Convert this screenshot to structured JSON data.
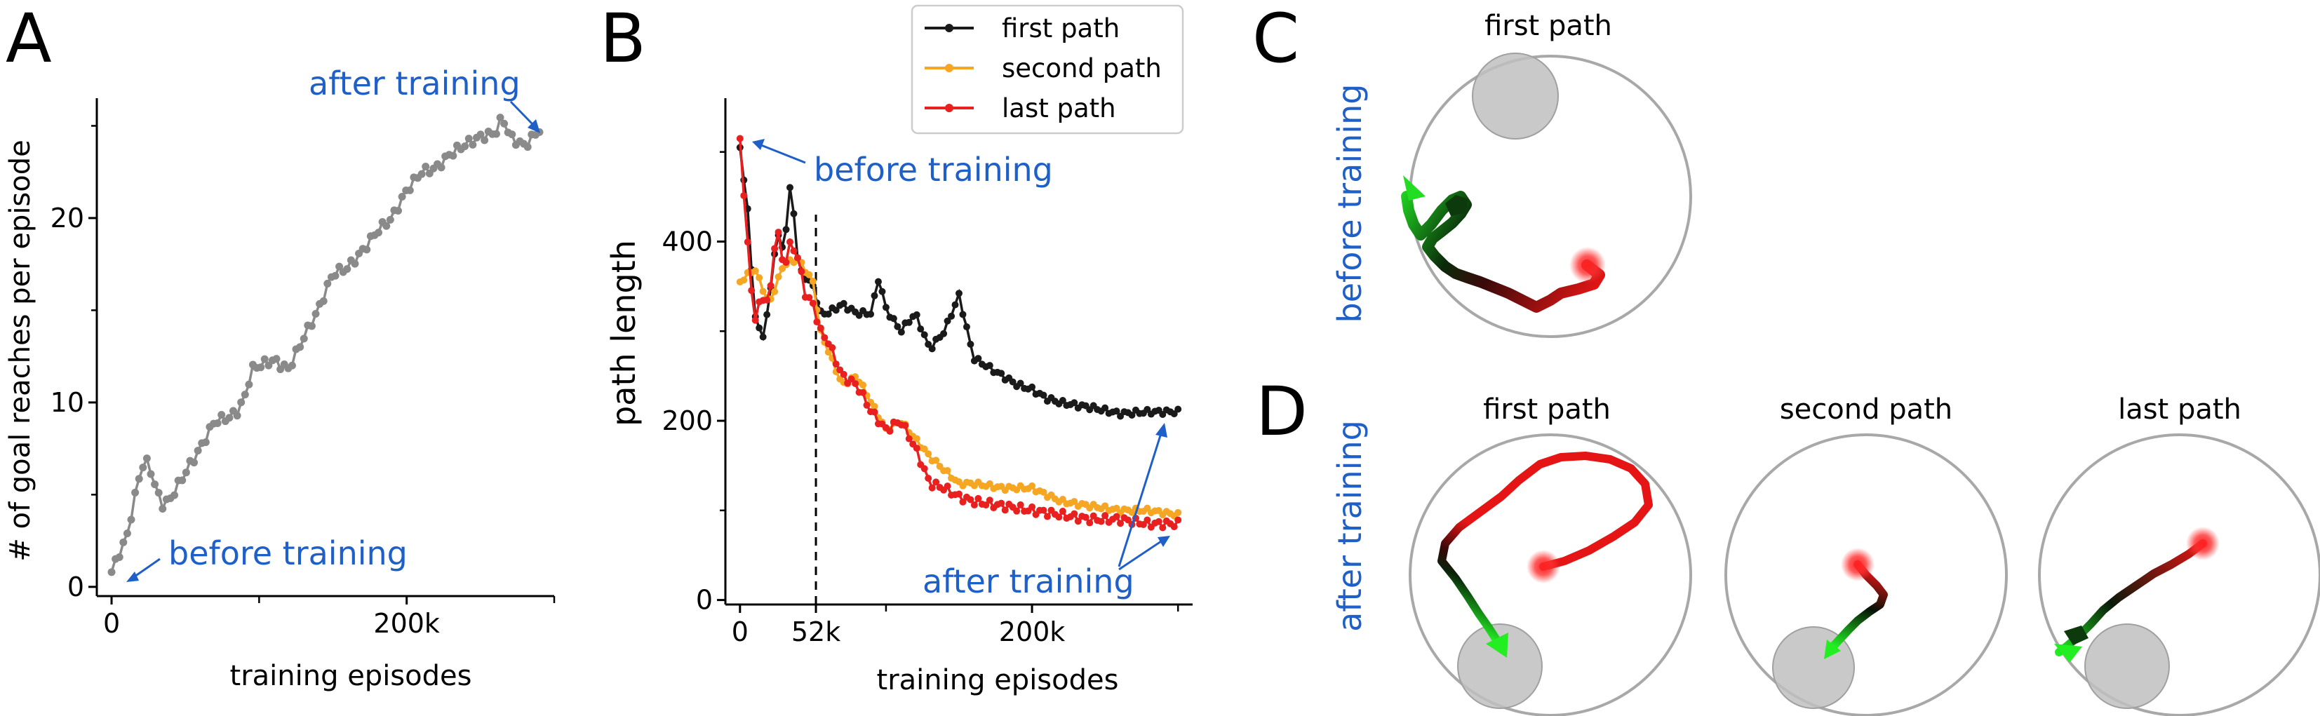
{
  "panels": {
    "A": "A",
    "B": "B",
    "C": "C",
    "D": "D"
  },
  "chart_data": [
    {
      "type": "line",
      "panel": "A",
      "xlabel": "training episodes",
      "ylabel": "# of goal reaches per episode",
      "xlim": [
        -10000,
        300000
      ],
      "ylim": [
        -0.5,
        26.5
      ],
      "xticks": [
        {
          "v": 0,
          "label": "0"
        },
        {
          "v": 200000,
          "label": "200k"
        }
      ],
      "xminor": [
        100000,
        300000
      ],
      "yticks": [
        {
          "v": 0,
          "label": "0"
        },
        {
          "v": 10,
          "label": "10"
        },
        {
          "v": 20,
          "label": "20"
        }
      ],
      "series": [
        {
          "name": "goal reaches",
          "color": "#8a8a8a",
          "anchors_x": [
            0,
            5000,
            10000,
            15000,
            20000,
            25000,
            30000,
            35000,
            40000,
            45000,
            50000,
            60000,
            70000,
            80000,
            85000,
            90000,
            95000,
            100000,
            110000,
            115000,
            120000,
            130000,
            140000,
            150000,
            160000,
            170000,
            180000,
            190000,
            200000,
            210000,
            220000,
            230000,
            240000,
            250000,
            260000,
            265000,
            270000,
            280000,
            290000
          ],
          "anchors_y": [
            0.8,
            1.8,
            2.6,
            4.5,
            6.5,
            6.8,
            5.3,
            4.4,
            4.8,
            5.5,
            6.2,
            7.5,
            9.0,
            9.2,
            9.5,
            10.2,
            11.8,
            12.0,
            12.3,
            12.0,
            11.8,
            13.5,
            15.0,
            17.0,
            17.3,
            18.2,
            19.3,
            20.0,
            21.5,
            22.5,
            22.7,
            23.5,
            24.0,
            24.4,
            24.6,
            25.5,
            24.4,
            23.9,
            24.8
          ]
        }
      ],
      "annotations": [
        {
          "text": "before training"
        },
        {
          "text": "after training"
        }
      ]
    },
    {
      "type": "line",
      "panel": "B",
      "xlabel": "training episodes",
      "ylabel": "path length",
      "xlim": [
        -10000,
        310000
      ],
      "ylim": [
        -5,
        560
      ],
      "xticks": [
        {
          "v": 0,
          "label": "0"
        },
        {
          "v": 52000,
          "label": "52k"
        },
        {
          "v": 200000,
          "label": "200k"
        }
      ],
      "xminor": [
        100000,
        300000
      ],
      "yticks": [
        {
          "v": 0,
          "label": "0"
        },
        {
          "v": 200,
          "label": "200"
        },
        {
          "v": 400,
          "label": "400"
        }
      ],
      "yminor": [
        100,
        300,
        500
      ],
      "vline": 52000,
      "legend": "top-right",
      "series": [
        {
          "name": "first path",
          "color": "#1a1a1a",
          "anchors_x": [
            0,
            5000,
            10000,
            15000,
            20000,
            25000,
            30000,
            35000,
            40000,
            45000,
            50000,
            55000,
            60000,
            70000,
            80000,
            90000,
            95000,
            100000,
            110000,
            120000,
            130000,
            140000,
            150000,
            160000,
            170000,
            180000,
            190000,
            200000,
            210000,
            220000,
            240000,
            260000,
            280000,
            300000
          ],
          "anchors_y": [
            505,
            440,
            320,
            290,
            330,
            410,
            390,
            470,
            370,
            360,
            350,
            320,
            320,
            330,
            320,
            320,
            360,
            325,
            300,
            320,
            280,
            300,
            340,
            270,
            260,
            250,
            240,
            235,
            225,
            220,
            215,
            208,
            210,
            210
          ]
        },
        {
          "name": "second path",
          "color": "#f5a623",
          "anchors_x": [
            0,
            10000,
            20000,
            30000,
            40000,
            50000,
            55000,
            60000,
            70000,
            80000,
            90000,
            100000,
            110000,
            120000,
            130000,
            140000,
            150000,
            160000,
            180000,
            200000,
            220000,
            240000,
            260000,
            280000,
            300000
          ],
          "anchors_y": [
            355,
            370,
            330,
            375,
            380,
            355,
            300,
            280,
            240,
            250,
            220,
            190,
            200,
            180,
            160,
            145,
            130,
            130,
            125,
            125,
            110,
            105,
            100,
            100,
            95
          ]
        },
        {
          "name": "last path",
          "color": "#e82020",
          "anchors_x": [
            0,
            5000,
            10000,
            15000,
            20000,
            25000,
            30000,
            35000,
            40000,
            45000,
            50000,
            55000,
            60000,
            70000,
            80000,
            90000,
            100000,
            110000,
            120000,
            130000,
            140000,
            150000,
            160000,
            180000,
            200000,
            220000,
            240000,
            260000,
            280000,
            300000
          ],
          "anchors_y": [
            515,
            400,
            310,
            340,
            330,
            420,
            370,
            400,
            380,
            340,
            330,
            300,
            290,
            250,
            240,
            210,
            190,
            200,
            170,
            130,
            125,
            115,
            110,
            105,
            100,
            95,
            90,
            90,
            85,
            85
          ]
        }
      ],
      "annotations": [
        {
          "text": "before training"
        },
        {
          "text": "after training"
        }
      ]
    }
  ],
  "trajectories": {
    "C": {
      "side_label": "before training",
      "plots": [
        {
          "title": "first path"
        }
      ]
    },
    "D": {
      "side_label": "after training",
      "plots": [
        {
          "title": "first path"
        },
        {
          "title": "second path"
        },
        {
          "title": "last path"
        }
      ]
    }
  }
}
